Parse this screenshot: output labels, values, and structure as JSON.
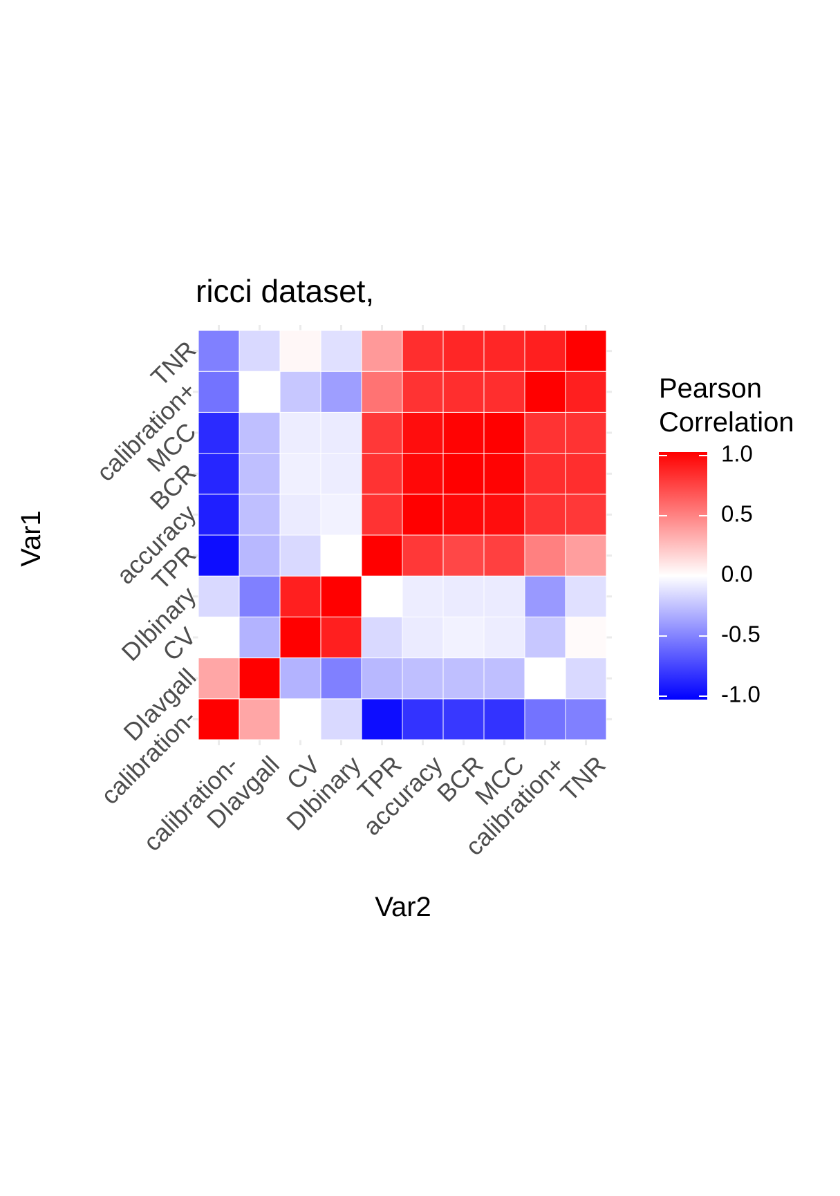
{
  "chart_data": {
    "type": "heatmap",
    "title": "ricci dataset,",
    "xlabel": "Var2",
    "ylabel": "Var1",
    "x_categories": [
      "calibration-",
      "DIavgall",
      "CV",
      "DIbinary",
      "TPR",
      "accuracy",
      "BCR",
      "MCC",
      "calibration+",
      "TNR"
    ],
    "y_categories": [
      "calibration-",
      "DIavgall",
      "CV",
      "DIbinary",
      "TPR",
      "accuracy",
      "BCR",
      "MCC",
      "calibration+",
      "TNR"
    ],
    "matrix": [
      [
        1.0,
        0.35,
        0.0,
        -0.15,
        -0.95,
        -0.8,
        -0.78,
        -0.8,
        -0.55,
        -0.5
      ],
      [
        0.35,
        1.0,
        -0.3,
        -0.5,
        -0.28,
        -0.25,
        -0.25,
        -0.25,
        0.0,
        -0.15
      ],
      [
        0.0,
        -0.3,
        1.0,
        0.88,
        -0.15,
        -0.08,
        -0.05,
        -0.07,
        -0.22,
        0.02
      ],
      [
        -0.15,
        -0.5,
        0.88,
        1.0,
        0.0,
        -0.07,
        -0.08,
        -0.08,
        -0.4,
        -0.12
      ],
      [
        -0.95,
        -0.28,
        -0.15,
        0.0,
        1.0,
        0.78,
        0.72,
        0.75,
        0.5,
        0.38
      ],
      [
        -0.88,
        -0.25,
        -0.08,
        -0.05,
        0.8,
        1.0,
        0.97,
        0.95,
        0.8,
        0.78
      ],
      [
        -0.85,
        -0.25,
        -0.06,
        -0.07,
        0.8,
        0.97,
        1.0,
        0.99,
        0.82,
        0.82
      ],
      [
        -0.83,
        -0.25,
        -0.07,
        -0.08,
        0.78,
        0.95,
        0.99,
        1.0,
        0.8,
        0.8
      ],
      [
        -0.55,
        0.0,
        -0.22,
        -0.38,
        0.55,
        0.8,
        0.82,
        0.82,
        1.0,
        0.88
      ],
      [
        -0.5,
        -0.15,
        0.03,
        -0.12,
        0.4,
        0.82,
        0.85,
        0.85,
        0.88,
        1.0
      ]
    ],
    "legend": {
      "title_lines": [
        "Pearson",
        "Correlation"
      ],
      "ticks": [
        1.0,
        0.5,
        0.0,
        -0.5,
        -1.0
      ],
      "tick_labels": [
        "1.0",
        "0.5",
        "0.0",
        "-0.5",
        "-1.0"
      ],
      "range": [
        -1,
        1
      ],
      "low_color": "#0000ff",
      "mid_color": "#ffffff",
      "high_color": "#ff0000",
      "placement": "right"
    }
  }
}
